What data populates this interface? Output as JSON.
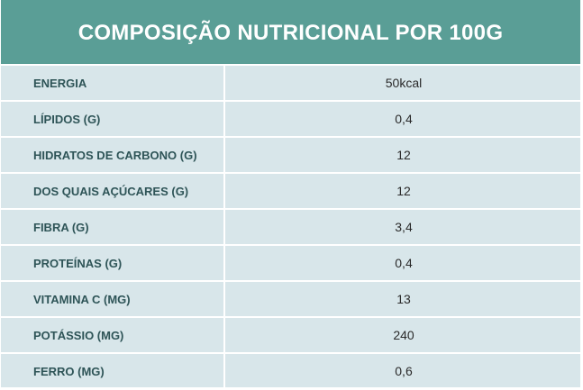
{
  "table": {
    "title": "COMPOSIÇÃO NUTRICIONAL POR 100G",
    "rows": [
      {
        "label": "ENERGIA",
        "value": "50kcal"
      },
      {
        "label": "LÍPIDOS (G)",
        "value": "0,4"
      },
      {
        "label": "HIDRATOS DE CARBONO (G)",
        "value": "12"
      },
      {
        "label": "DOS QUAIS AÇÚCARES (G)",
        "value": "12"
      },
      {
        "label": "FIBRA (G)",
        "value": "3,4"
      },
      {
        "label": "PROTEÍNAS (G)",
        "value": "0,4"
      },
      {
        "label": "VITAMINA C (MG)",
        "value": "13"
      },
      {
        "label": "POTÁSSIO (MG)",
        "value": "240"
      },
      {
        "label": "FERRO (MG)",
        "value": "0,6"
      }
    ]
  },
  "colors": {
    "header_bg": "#5a9e96",
    "row_bg": "#d8e6ea",
    "label_text": "#2e5457",
    "value_text": "#2a2a2a",
    "divider": "#ffffff"
  }
}
